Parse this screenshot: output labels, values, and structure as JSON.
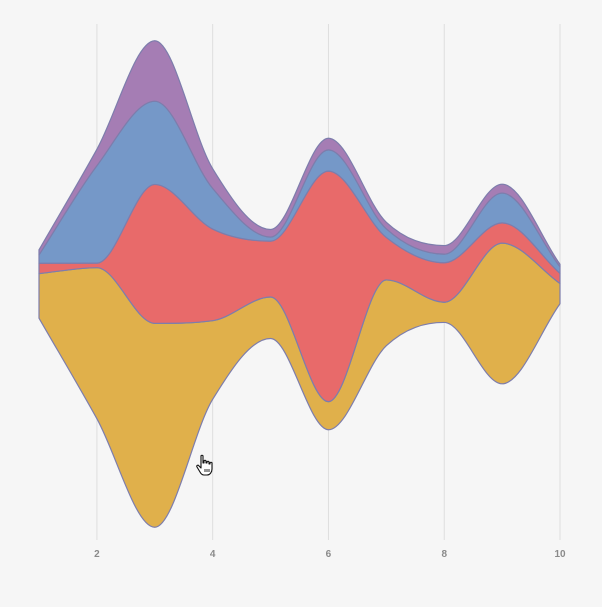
{
  "chart_data": {
    "type": "area",
    "subtype": "streamgraph",
    "x": [
      1,
      2,
      3,
      4,
      5,
      6,
      7,
      8,
      9,
      10
    ],
    "xlim": [
      1,
      10
    ],
    "x_ticks": [
      "2",
      "4",
      "6",
      "8",
      "10"
    ],
    "grid": "vertical",
    "legend": "none",
    "series": [
      {
        "color": "#e0b04b",
        "values": [
          1.76,
          5.97,
          8.06,
          3.11,
          1.64,
          1.11,
          2.6,
          0.8,
          5.56,
          0.8
        ]
      },
      {
        "color": "#e86a6a",
        "values": [
          0.41,
          0.18,
          5.49,
          3.62,
          2.21,
          9.11,
          1.68,
          1.56,
          0.8,
          0.4
        ]
      },
      {
        "color": "#7598c8",
        "values": [
          0.33,
          3.85,
          3.29,
          1.61,
          0.16,
          0.84,
          0.34,
          0.34,
          1.18,
          0.26
        ]
      },
      {
        "color": "#a57db4",
        "values": [
          0.2,
          0.65,
          2.39,
          0.78,
          0.3,
          0.46,
          0.26,
          0.34,
          0.35,
          0.1
        ]
      }
    ]
  },
  "colors": {
    "background": "#f6f6f6",
    "grid": "#dedede",
    "tick_label": "#8a8a8a",
    "outline": "#7d7dac"
  },
  "cursor_icon": "pointer-hand-icon"
}
